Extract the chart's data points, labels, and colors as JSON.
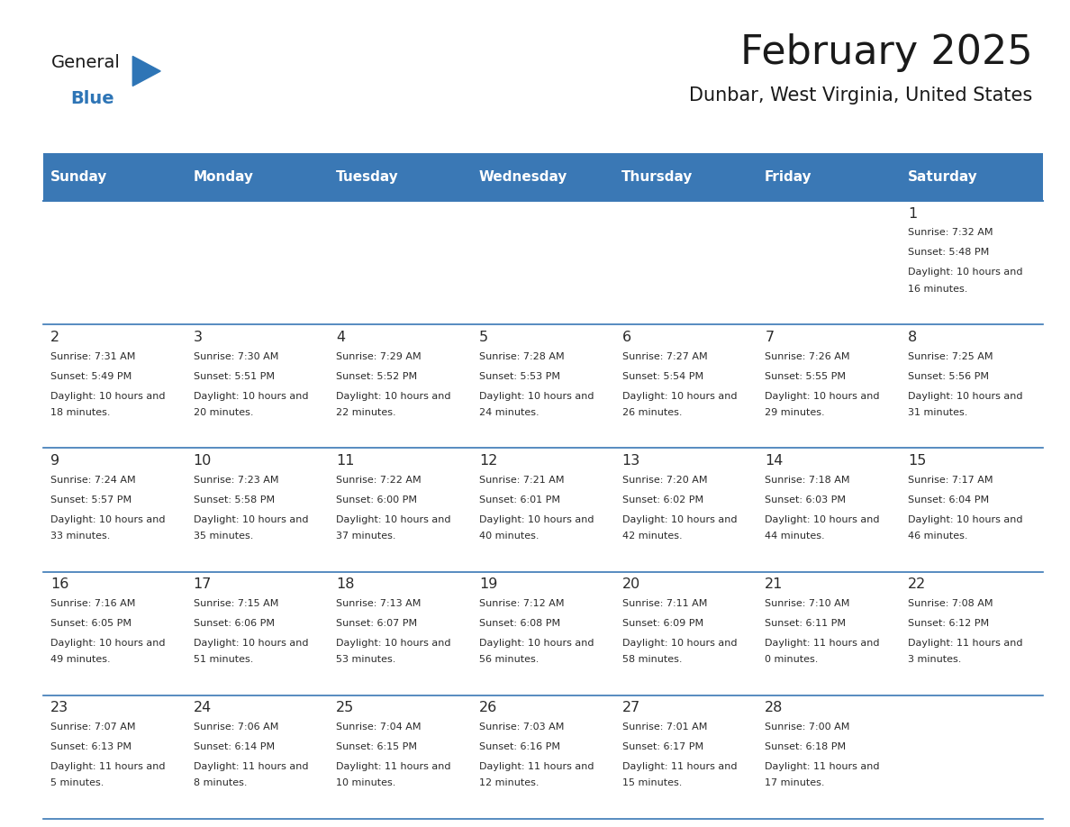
{
  "title": "February 2025",
  "subtitle": "Dunbar, West Virginia, United States",
  "header_bg": "#3A78B5",
  "header_text_color": "#FFFFFF",
  "separator_color": "#3A78B5",
  "day_headers": [
    "Sunday",
    "Monday",
    "Tuesday",
    "Wednesday",
    "Thursday",
    "Friday",
    "Saturday"
  ],
  "logo_general_color": "#1a1a1a",
  "logo_blue_color": "#2E75B6",
  "calendar": [
    [
      {
        "day": "",
        "sunrise": "",
        "sunset": "",
        "daylight": ""
      },
      {
        "day": "",
        "sunrise": "",
        "sunset": "",
        "daylight": ""
      },
      {
        "day": "",
        "sunrise": "",
        "sunset": "",
        "daylight": ""
      },
      {
        "day": "",
        "sunrise": "",
        "sunset": "",
        "daylight": ""
      },
      {
        "day": "",
        "sunrise": "",
        "sunset": "",
        "daylight": ""
      },
      {
        "day": "",
        "sunrise": "",
        "sunset": "",
        "daylight": ""
      },
      {
        "day": "1",
        "sunrise": "7:32 AM",
        "sunset": "5:48 PM",
        "daylight": "10 hours and 16 minutes."
      }
    ],
    [
      {
        "day": "2",
        "sunrise": "7:31 AM",
        "sunset": "5:49 PM",
        "daylight": "10 hours and 18 minutes."
      },
      {
        "day": "3",
        "sunrise": "7:30 AM",
        "sunset": "5:51 PM",
        "daylight": "10 hours and 20 minutes."
      },
      {
        "day": "4",
        "sunrise": "7:29 AM",
        "sunset": "5:52 PM",
        "daylight": "10 hours and 22 minutes."
      },
      {
        "day": "5",
        "sunrise": "7:28 AM",
        "sunset": "5:53 PM",
        "daylight": "10 hours and 24 minutes."
      },
      {
        "day": "6",
        "sunrise": "7:27 AM",
        "sunset": "5:54 PM",
        "daylight": "10 hours and 26 minutes."
      },
      {
        "day": "7",
        "sunrise": "7:26 AM",
        "sunset": "5:55 PM",
        "daylight": "10 hours and 29 minutes."
      },
      {
        "day": "8",
        "sunrise": "7:25 AM",
        "sunset": "5:56 PM",
        "daylight": "10 hours and 31 minutes."
      }
    ],
    [
      {
        "day": "9",
        "sunrise": "7:24 AM",
        "sunset": "5:57 PM",
        "daylight": "10 hours and 33 minutes."
      },
      {
        "day": "10",
        "sunrise": "7:23 AM",
        "sunset": "5:58 PM",
        "daylight": "10 hours and 35 minutes."
      },
      {
        "day": "11",
        "sunrise": "7:22 AM",
        "sunset": "6:00 PM",
        "daylight": "10 hours and 37 minutes."
      },
      {
        "day": "12",
        "sunrise": "7:21 AM",
        "sunset": "6:01 PM",
        "daylight": "10 hours and 40 minutes."
      },
      {
        "day": "13",
        "sunrise": "7:20 AM",
        "sunset": "6:02 PM",
        "daylight": "10 hours and 42 minutes."
      },
      {
        "day": "14",
        "sunrise": "7:18 AM",
        "sunset": "6:03 PM",
        "daylight": "10 hours and 44 minutes."
      },
      {
        "day": "15",
        "sunrise": "7:17 AM",
        "sunset": "6:04 PM",
        "daylight": "10 hours and 46 minutes."
      }
    ],
    [
      {
        "day": "16",
        "sunrise": "7:16 AM",
        "sunset": "6:05 PM",
        "daylight": "10 hours and 49 minutes."
      },
      {
        "day": "17",
        "sunrise": "7:15 AM",
        "sunset": "6:06 PM",
        "daylight": "10 hours and 51 minutes."
      },
      {
        "day": "18",
        "sunrise": "7:13 AM",
        "sunset": "6:07 PM",
        "daylight": "10 hours and 53 minutes."
      },
      {
        "day": "19",
        "sunrise": "7:12 AM",
        "sunset": "6:08 PM",
        "daylight": "10 hours and 56 minutes."
      },
      {
        "day": "20",
        "sunrise": "7:11 AM",
        "sunset": "6:09 PM",
        "daylight": "10 hours and 58 minutes."
      },
      {
        "day": "21",
        "sunrise": "7:10 AM",
        "sunset": "6:11 PM",
        "daylight": "11 hours and 0 minutes."
      },
      {
        "day": "22",
        "sunrise": "7:08 AM",
        "sunset": "6:12 PM",
        "daylight": "11 hours and 3 minutes."
      }
    ],
    [
      {
        "day": "23",
        "sunrise": "7:07 AM",
        "sunset": "6:13 PM",
        "daylight": "11 hours and 5 minutes."
      },
      {
        "day": "24",
        "sunrise": "7:06 AM",
        "sunset": "6:14 PM",
        "daylight": "11 hours and 8 minutes."
      },
      {
        "day": "25",
        "sunrise": "7:04 AM",
        "sunset": "6:15 PM",
        "daylight": "11 hours and 10 minutes."
      },
      {
        "day": "26",
        "sunrise": "7:03 AM",
        "sunset": "6:16 PM",
        "daylight": "11 hours and 12 minutes."
      },
      {
        "day": "27",
        "sunrise": "7:01 AM",
        "sunset": "6:17 PM",
        "daylight": "11 hours and 15 minutes."
      },
      {
        "day": "28",
        "sunrise": "7:00 AM",
        "sunset": "6:18 PM",
        "daylight": "11 hours and 17 minutes."
      },
      {
        "day": "",
        "sunrise": "",
        "sunset": "",
        "daylight": ""
      }
    ]
  ]
}
